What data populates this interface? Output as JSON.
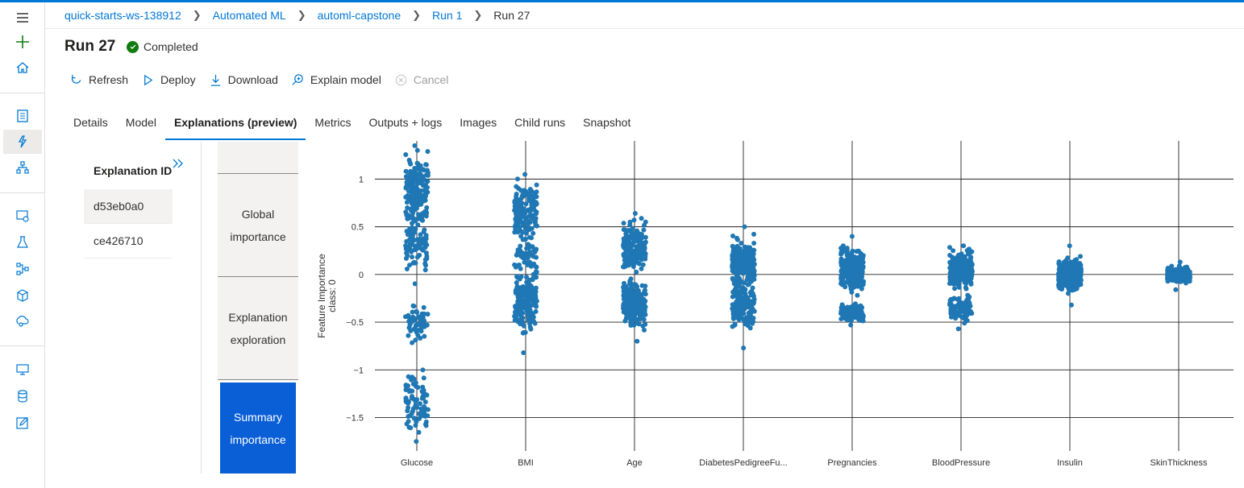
{
  "breadcrumb": [
    {
      "label": "quick-starts-ws-138912",
      "link": true
    },
    {
      "label": "Automated ML",
      "link": true
    },
    {
      "label": "automl-capstone",
      "link": true
    },
    {
      "label": "Run 1",
      "link": true
    },
    {
      "label": "Run 27",
      "link": false
    }
  ],
  "page": {
    "title": "Run 27",
    "status": "Completed",
    "status_color": "#107c10"
  },
  "toolbar": {
    "refresh": "Refresh",
    "deploy": "Deploy",
    "download": "Download",
    "explain": "Explain model",
    "cancel": "Cancel"
  },
  "tabs": [
    "Details",
    "Model",
    "Explanations (preview)",
    "Metrics",
    "Outputs + logs",
    "Images",
    "Child runs",
    "Snapshot"
  ],
  "active_tab": "Explanations (preview)",
  "explanations": {
    "header": "Explanation ID",
    "ids": [
      "d53eb0a0",
      "ce426710"
    ],
    "selected": "d53eb0a0"
  },
  "side_nav": {
    "global": "Global importance",
    "exploration": "Explanation exploration",
    "summary": "Summary importance"
  },
  "colors": {
    "accent": "#0078d4",
    "point": "#1f77b4",
    "active_nav": "#0a5fd6"
  },
  "chart_data": {
    "type": "scatter",
    "ylabel": "Feature Importance\nclass:  0",
    "yticks": [
      1,
      0.5,
      0,
      -0.5,
      -1,
      -1.5
    ],
    "ytick_labels": [
      "1",
      "0.5",
      "0",
      "−0.5",
      "−1",
      "−1.5"
    ],
    "ylim": [
      -1.85,
      1.4
    ],
    "grid": true,
    "categories": [
      "Glucose",
      "BMI",
      "Age",
      "DiabetesPedigreeFu...",
      "Pregnancies",
      "BloodPressure",
      "Insulin",
      "SkinThickness"
    ],
    "series": [
      {
        "category": "Glucose",
        "min": -1.75,
        "max": 1.35,
        "clusters": [
          {
            "center": 0.85,
            "spread": 0.35,
            "weight": 0.45
          },
          {
            "center": 0.3,
            "spread": 0.25,
            "weight": 0.2
          },
          {
            "center": -0.5,
            "spread": 0.15,
            "weight": 0.15
          },
          {
            "center": -1.35,
            "spread": 0.3,
            "weight": 0.2
          }
        ]
      },
      {
        "category": "BMI",
        "min": -0.82,
        "max": 1.05,
        "clusters": [
          {
            "center": 0.65,
            "spread": 0.25,
            "weight": 0.4
          },
          {
            "center": 0.2,
            "spread": 0.2,
            "weight": 0.15
          },
          {
            "center": -0.3,
            "spread": 0.25,
            "weight": 0.45
          }
        ]
      },
      {
        "category": "Age",
        "min": -0.7,
        "max": 0.64,
        "clusters": [
          {
            "center": 0.3,
            "spread": 0.2,
            "weight": 0.5
          },
          {
            "center": -0.3,
            "spread": 0.2,
            "weight": 0.5
          }
        ]
      },
      {
        "category": "DiabetesPedigreeFu...",
        "min": -0.77,
        "max": 0.5,
        "clusters": [
          {
            "center": 0.1,
            "spread": 0.2,
            "weight": 0.65
          },
          {
            "center": -0.35,
            "spread": 0.2,
            "weight": 0.35
          }
        ]
      },
      {
        "category": "Pregnancies",
        "min": -0.53,
        "max": 0.4,
        "clusters": [
          {
            "center": 0.05,
            "spread": 0.18,
            "weight": 0.7
          },
          {
            "center": -0.4,
            "spread": 0.08,
            "weight": 0.3
          }
        ]
      },
      {
        "category": "BloodPressure",
        "min": -0.57,
        "max": 0.3,
        "clusters": [
          {
            "center": 0.05,
            "spread": 0.15,
            "weight": 0.75
          },
          {
            "center": -0.35,
            "spread": 0.12,
            "weight": 0.25
          }
        ]
      },
      {
        "category": "Insulin",
        "min": -0.32,
        "max": 0.3,
        "clusters": [
          {
            "center": 0.0,
            "spread": 0.12,
            "weight": 1.0
          }
        ]
      },
      {
        "category": "SkinThickness",
        "min": -0.16,
        "max": 0.13,
        "clusters": [
          {
            "center": 0.0,
            "spread": 0.06,
            "weight": 1.0
          }
        ]
      }
    ]
  }
}
